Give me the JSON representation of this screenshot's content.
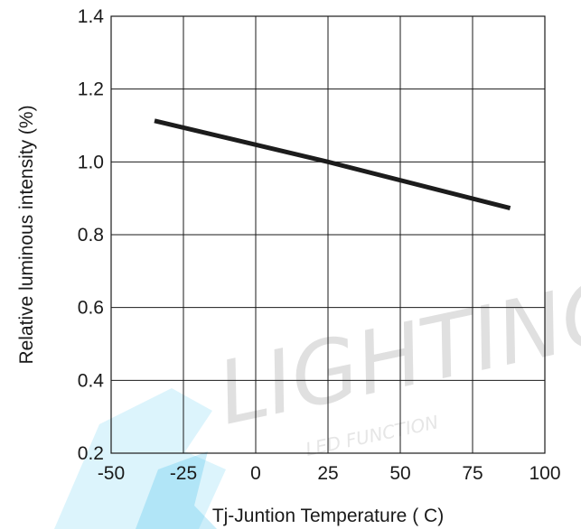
{
  "chart_data": {
    "type": "line",
    "xlabel": "Tj-Juntion Temperature ( C)",
    "ylabel": "Relative luminous intensity (%)",
    "xlim": [
      -50,
      100
    ],
    "ylim": [
      0.2,
      1.4
    ],
    "x_ticks": [
      "-50",
      "-25",
      "0",
      "25",
      "50",
      "75",
      "100"
    ],
    "y_ticks": [
      "0.2",
      "0.4",
      "0.6",
      "0.8",
      "1.0",
      "1.2",
      "1.4"
    ],
    "grid": true,
    "legend": "none",
    "series": [
      {
        "x": [
          -35,
          25,
          88
        ],
        "y": [
          1.113,
          1.0,
          0.873
        ],
        "color": "#1c1c1c"
      }
    ]
  },
  "watermark": {
    "text": "LIGHTING",
    "subtext": "LED FUNCTION",
    "color": "#dcdcdc",
    "accent": "#29b6e8"
  }
}
